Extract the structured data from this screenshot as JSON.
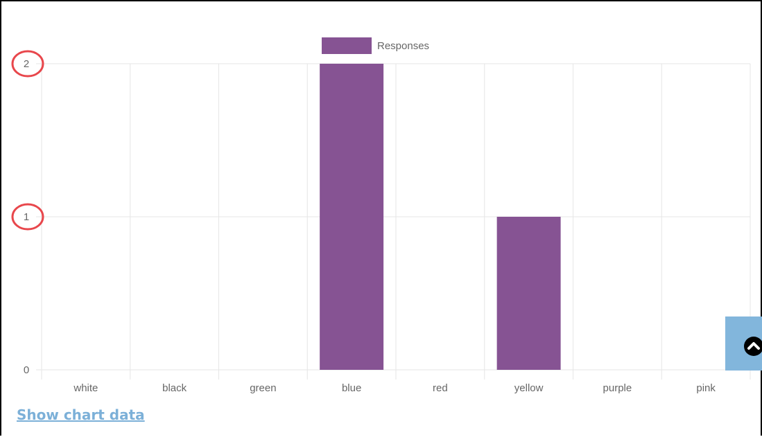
{
  "chart_data": {
    "type": "bar",
    "categories": [
      "white",
      "black",
      "green",
      "blue",
      "red",
      "yellow",
      "purple",
      "pink"
    ],
    "series": [
      {
        "name": "Responses",
        "values": [
          0,
          0,
          0,
          2,
          0,
          1,
          0,
          0
        ]
      }
    ],
    "ylim": [
      0,
      2
    ],
    "yticks": [
      "0",
      "1",
      "2"
    ],
    "legend_position": "top",
    "grid": true,
    "colors": {
      "bar": "#865393",
      "grid": "#e6e6e6",
      "highlight_circle": "#e8474c"
    },
    "annotations": {
      "circled_ticks": [
        "2",
        "1"
      ]
    }
  },
  "footer": {
    "show_chart_data_label": "Show chart data"
  },
  "scroll_top": {
    "icon": "chevron-up-circle-icon",
    "color": "#82b6dc"
  }
}
